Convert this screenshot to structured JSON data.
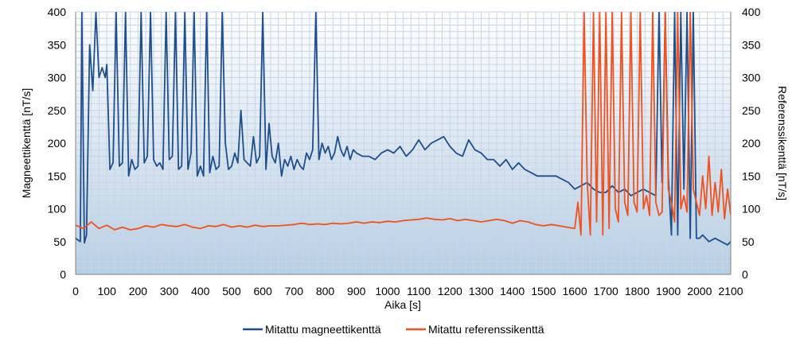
{
  "chart_data": {
    "type": "line",
    "xlabel": "Aika [s]",
    "ylabel_left": "Magneettikenttä [nT/s]",
    "ylabel_right": "Referenssikenttä [nT/s]",
    "xlim": [
      0,
      2100
    ],
    "ylim": [
      0,
      400
    ],
    "x_ticks": [
      0,
      100,
      200,
      300,
      400,
      500,
      600,
      700,
      800,
      900,
      1000,
      1100,
      1200,
      1300,
      1400,
      1500,
      1600,
      1700,
      1800,
      1900,
      2000,
      2100
    ],
    "y_ticks": [
      0,
      50,
      100,
      150,
      200,
      250,
      300,
      350,
      400
    ],
    "grid": true,
    "legend_position": "bottom",
    "series": [
      {
        "name": "Mitattu magneettikenttä",
        "color": "#1f4e8c",
        "points": [
          [
            0,
            55
          ],
          [
            15,
            50
          ],
          [
            20,
            400
          ],
          [
            28,
            48
          ],
          [
            35,
            60
          ],
          [
            45,
            350
          ],
          [
            55,
            280
          ],
          [
            65,
            400
          ],
          [
            75,
            300
          ],
          [
            85,
            315
          ],
          [
            95,
            300
          ],
          [
            100,
            320
          ],
          [
            110,
            160
          ],
          [
            120,
            170
          ],
          [
            130,
            400
          ],
          [
            140,
            165
          ],
          [
            150,
            170
          ],
          [
            160,
            400
          ],
          [
            170,
            150
          ],
          [
            180,
            175
          ],
          [
            190,
            160
          ],
          [
            200,
            165
          ],
          [
            210,
            400
          ],
          [
            220,
            170
          ],
          [
            230,
            180
          ],
          [
            240,
            400
          ],
          [
            250,
            175
          ],
          [
            260,
            165
          ],
          [
            270,
            170
          ],
          [
            280,
            160
          ],
          [
            290,
            400
          ],
          [
            300,
            175
          ],
          [
            310,
            180
          ],
          [
            320,
            400
          ],
          [
            330,
            160
          ],
          [
            340,
            165
          ],
          [
            350,
            400
          ],
          [
            360,
            160
          ],
          [
            370,
            185
          ],
          [
            380,
            400
          ],
          [
            390,
            150
          ],
          [
            400,
            165
          ],
          [
            410,
            150
          ],
          [
            420,
            400
          ],
          [
            430,
            155
          ],
          [
            440,
            180
          ],
          [
            450,
            160
          ],
          [
            460,
            165
          ],
          [
            470,
            400
          ],
          [
            480,
            200
          ],
          [
            490,
            160
          ],
          [
            500,
            165
          ],
          [
            510,
            185
          ],
          [
            520,
            170
          ],
          [
            530,
            250
          ],
          [
            540,
            175
          ],
          [
            550,
            170
          ],
          [
            560,
            165
          ],
          [
            570,
            210
          ],
          [
            580,
            170
          ],
          [
            590,
            180
          ],
          [
            600,
            400
          ],
          [
            610,
            160
          ],
          [
            620,
            230
          ],
          [
            630,
            180
          ],
          [
            640,
            170
          ],
          [
            650,
            200
          ],
          [
            660,
            150
          ],
          [
            670,
            175
          ],
          [
            680,
            165
          ],
          [
            690,
            180
          ],
          [
            700,
            160
          ],
          [
            710,
            175
          ],
          [
            720,
            165
          ],
          [
            730,
            160
          ],
          [
            740,
            185
          ],
          [
            750,
            175
          ],
          [
            760,
            190
          ],
          [
            770,
            400
          ],
          [
            780,
            175
          ],
          [
            790,
            200
          ],
          [
            800,
            185
          ],
          [
            810,
            195
          ],
          [
            820,
            175
          ],
          [
            830,
            185
          ],
          [
            840,
            210
          ],
          [
            850,
            190
          ],
          [
            860,
            180
          ],
          [
            870,
            195
          ],
          [
            880,
            175
          ],
          [
            890,
            190
          ],
          [
            900,
            185
          ],
          [
            920,
            180
          ],
          [
            940,
            180
          ],
          [
            960,
            175
          ],
          [
            980,
            185
          ],
          [
            1000,
            190
          ],
          [
            1020,
            185
          ],
          [
            1040,
            195
          ],
          [
            1060,
            180
          ],
          [
            1080,
            190
          ],
          [
            1100,
            205
          ],
          [
            1120,
            190
          ],
          [
            1140,
            200
          ],
          [
            1160,
            205
          ],
          [
            1180,
            210
          ],
          [
            1200,
            195
          ],
          [
            1220,
            185
          ],
          [
            1240,
            180
          ],
          [
            1260,
            205
          ],
          [
            1280,
            190
          ],
          [
            1300,
            185
          ],
          [
            1320,
            175
          ],
          [
            1340,
            175
          ],
          [
            1360,
            165
          ],
          [
            1380,
            175
          ],
          [
            1400,
            160
          ],
          [
            1420,
            170
          ],
          [
            1440,
            160
          ],
          [
            1460,
            155
          ],
          [
            1480,
            150
          ],
          [
            1500,
            150
          ],
          [
            1520,
            150
          ],
          [
            1540,
            150
          ],
          [
            1560,
            145
          ],
          [
            1580,
            140
          ],
          [
            1600,
            130
          ],
          [
            1620,
            135
          ],
          [
            1640,
            140
          ],
          [
            1660,
            130
          ],
          [
            1680,
            125
          ],
          [
            1700,
            125
          ],
          [
            1720,
            135
          ],
          [
            1740,
            125
          ],
          [
            1760,
            130
          ],
          [
            1780,
            120
          ],
          [
            1800,
            125
          ],
          [
            1820,
            130
          ],
          [
            1840,
            125
          ],
          [
            1860,
            120
          ],
          [
            1870,
            400
          ],
          [
            1880,
            140
          ],
          [
            1890,
            400
          ],
          [
            1900,
            150
          ],
          [
            1910,
            60
          ],
          [
            1920,
            400
          ],
          [
            1930,
            60
          ],
          [
            1940,
            400
          ],
          [
            1950,
            130
          ],
          [
            1960,
            400
          ],
          [
            1970,
            55
          ],
          [
            1980,
            400
          ],
          [
            1990,
            55
          ],
          [
            2000,
            55
          ],
          [
            2010,
            60
          ],
          [
            2030,
            50
          ],
          [
            2050,
            55
          ],
          [
            2070,
            50
          ],
          [
            2090,
            45
          ],
          [
            2100,
            50
          ]
        ]
      },
      {
        "name": "Mitattu referenssikenttä",
        "color": "#f2501c",
        "points": [
          [
            0,
            75
          ],
          [
            25,
            70
          ],
          [
            50,
            80
          ],
          [
            75,
            70
          ],
          [
            100,
            75
          ],
          [
            125,
            68
          ],
          [
            150,
            72
          ],
          [
            175,
            68
          ],
          [
            200,
            70
          ],
          [
            225,
            74
          ],
          [
            250,
            72
          ],
          [
            275,
            76
          ],
          [
            300,
            74
          ],
          [
            325,
            73
          ],
          [
            350,
            76
          ],
          [
            375,
            72
          ],
          [
            400,
            70
          ],
          [
            425,
            74
          ],
          [
            450,
            73
          ],
          [
            475,
            76
          ],
          [
            500,
            72
          ],
          [
            525,
            74
          ],
          [
            550,
            72
          ],
          [
            575,
            75
          ],
          [
            600,
            73
          ],
          [
            625,
            74
          ],
          [
            650,
            74
          ],
          [
            675,
            75
          ],
          [
            700,
            76
          ],
          [
            725,
            78
          ],
          [
            750,
            76
          ],
          [
            775,
            77
          ],
          [
            800,
            76
          ],
          [
            825,
            78
          ],
          [
            850,
            77
          ],
          [
            875,
            78
          ],
          [
            900,
            80
          ],
          [
            925,
            78
          ],
          [
            950,
            80
          ],
          [
            975,
            79
          ],
          [
            1000,
            81
          ],
          [
            1025,
            80
          ],
          [
            1050,
            82
          ],
          [
            1075,
            83
          ],
          [
            1100,
            84
          ],
          [
            1125,
            86
          ],
          [
            1150,
            84
          ],
          [
            1175,
            83
          ],
          [
            1200,
            85
          ],
          [
            1225,
            82
          ],
          [
            1250,
            84
          ],
          [
            1275,
            82
          ],
          [
            1300,
            80
          ],
          [
            1325,
            82
          ],
          [
            1350,
            84
          ],
          [
            1375,
            82
          ],
          [
            1400,
            78
          ],
          [
            1425,
            82
          ],
          [
            1450,
            80
          ],
          [
            1475,
            76
          ],
          [
            1500,
            74
          ],
          [
            1525,
            76
          ],
          [
            1550,
            74
          ],
          [
            1575,
            72
          ],
          [
            1600,
            70
          ],
          [
            1610,
            110
          ],
          [
            1620,
            60
          ],
          [
            1630,
            400
          ],
          [
            1640,
            140
          ],
          [
            1650,
            60
          ],
          [
            1660,
            400
          ],
          [
            1670,
            80
          ],
          [
            1680,
            400
          ],
          [
            1690,
            60
          ],
          [
            1700,
            400
          ],
          [
            1710,
            70
          ],
          [
            1720,
            400
          ],
          [
            1730,
            100
          ],
          [
            1740,
            80
          ],
          [
            1750,
            400
          ],
          [
            1760,
            110
          ],
          [
            1770,
            90
          ],
          [
            1780,
            400
          ],
          [
            1790,
            110
          ],
          [
            1800,
            95
          ],
          [
            1810,
            400
          ],
          [
            1820,
            100
          ],
          [
            1830,
            120
          ],
          [
            1840,
            90
          ],
          [
            1850,
            400
          ],
          [
            1860,
            110
          ],
          [
            1870,
            90
          ],
          [
            1880,
            95
          ],
          [
            1890,
            400
          ],
          [
            1900,
            130
          ],
          [
            1910,
            110
          ],
          [
            1920,
            80
          ],
          [
            1930,
            400
          ],
          [
            1940,
            100
          ],
          [
            1950,
            120
          ],
          [
            1960,
            95
          ],
          [
            1970,
            400
          ],
          [
            1980,
            130
          ],
          [
            1990,
            110
          ],
          [
            2000,
            90
          ],
          [
            2010,
            150
          ],
          [
            2020,
            100
          ],
          [
            2030,
            180
          ],
          [
            2040,
            90
          ],
          [
            2050,
            140
          ],
          [
            2060,
            95
          ],
          [
            2070,
            160
          ],
          [
            2080,
            85
          ],
          [
            2090,
            130
          ],
          [
            2100,
            90
          ]
        ]
      }
    ]
  }
}
